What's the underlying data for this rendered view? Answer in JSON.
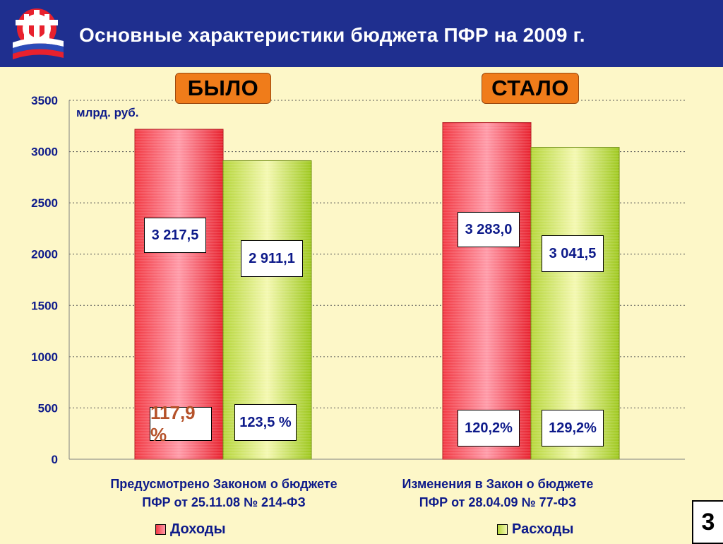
{
  "header": {
    "title": "Основные характеристики бюджета ПФР на 2009 г."
  },
  "tags": {
    "before": "БЫЛО",
    "after": "СТАЛО"
  },
  "unit_label": "млрд. руб.",
  "bar_labels": {
    "before_income": "3 217,5",
    "before_expense": "2 911,1",
    "after_income": "3 283,0",
    "after_expense": "3 041,5"
  },
  "pct_labels": {
    "before_income": "117,9 %",
    "before_expense": "123,5 %",
    "after_income": "120,2%",
    "after_expense": "129,2%"
  },
  "categories": {
    "before_line1": "Предусмотрено Законом о бюджете",
    "before_line2": "ПФР от 25.11.08 № 214-ФЗ",
    "after_line1": "Изменения  в Закон о бюджете",
    "after_line2": "ПФР от 28.04.09 № 77-ФЗ"
  },
  "legend": {
    "income": "Доходы",
    "expense": "Расходы"
  },
  "slide_number": "3",
  "colors": {
    "header": "#1f2f8f",
    "income": "#e8313a",
    "expense": "#a8cc2a",
    "background": "#fdf7c8",
    "text": "#0d1a8a"
  },
  "chart_data": {
    "type": "bar",
    "categories": [
      "Предусмотрено Законом о бюджете ПФР от 25.11.08 № 214-ФЗ",
      "Изменения  в Закон о бюджете ПФР от 28.04.09 № 77-ФЗ"
    ],
    "series": [
      {
        "name": "Доходы",
        "values": [
          3217.5,
          3283.0
        ]
      },
      {
        "name": "Расходы",
        "values": [
          2911.1,
          3041.5
        ]
      }
    ],
    "ylabel": "млрд. руб.",
    "ylim": [
      0,
      3500
    ],
    "yticks": [
      0,
      500,
      1000,
      1500,
      2000,
      2500,
      3000,
      3500
    ],
    "grid": true,
    "legend_position": "bottom"
  }
}
